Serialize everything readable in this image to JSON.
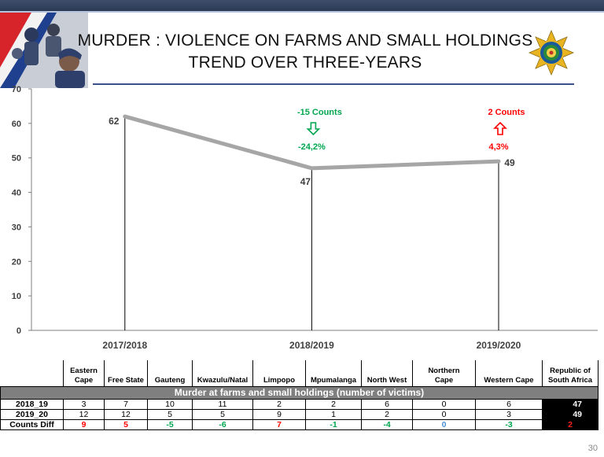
{
  "slide": {
    "title_line1": "MURDER :  VIOLENCE ON FARMS AND SMALL HOLDINGS",
    "title_line2": "TREND OVER THREE-YEARS",
    "page_number": "30"
  },
  "chart_data": {
    "type": "line",
    "title": "",
    "xlabel": "",
    "ylabel": "",
    "categories": [
      "2017/2018",
      "2018/2019",
      "2019/2020"
    ],
    "series": [
      {
        "values": [
          62,
          47,
          49
        ]
      }
    ],
    "ylim": [
      0,
      70
    ],
    "yticks": [
      "0",
      "10",
      "20",
      "30",
      "40",
      "50",
      "60",
      "70"
    ],
    "grid": false,
    "line_color": "#a6a6a6",
    "annotations": [
      {
        "category": "2018/2019",
        "counts": "-15 Counts",
        "percent": "-24,2%",
        "direction": "down",
        "color": "#00a64f"
      },
      {
        "category": "2019/2020",
        "counts": "2 Counts",
        "percent": "4,3%",
        "direction": "up",
        "color": "#ff0000"
      }
    ]
  },
  "table": {
    "band_title": "Murder at farms and small holdings (number of victims)",
    "columns": [
      {
        "line1": "Eastern",
        "line2": "Cape"
      },
      {
        "line1": "",
        "line2": "Free State"
      },
      {
        "line1": "",
        "line2": "Gauteng"
      },
      {
        "line1": "",
        "line2": "Kwazulu/Natal"
      },
      {
        "line1": "",
        "line2": "Limpopo"
      },
      {
        "line1": "",
        "line2": "Mpumalanga"
      },
      {
        "line1": "",
        "line2": "North West"
      },
      {
        "line1": "Northern",
        "line2": "Cape"
      },
      {
        "line1": "",
        "line2": "Western Cape"
      },
      {
        "line1": "Republic of",
        "line2": "South Africa"
      }
    ],
    "rows": [
      {
        "label": "2018_19",
        "values": [
          "3",
          "7",
          "10",
          "11",
          "2",
          "2",
          "6",
          "0",
          "6",
          "47"
        ]
      },
      {
        "label": "2019_20",
        "values": [
          "12",
          "12",
          "5",
          "5",
          "9",
          "1",
          "2",
          "0",
          "3",
          "49"
        ]
      }
    ],
    "diff_row": {
      "label": "Counts Diff",
      "values": [
        "9",
        "5",
        "-5",
        "-6",
        "7",
        "-1",
        "-4",
        "0",
        "-3",
        "2"
      ],
      "colors": [
        "red",
        "red",
        "green",
        "green",
        "red",
        "green",
        "green",
        "blue",
        "green",
        "red"
      ]
    }
  }
}
